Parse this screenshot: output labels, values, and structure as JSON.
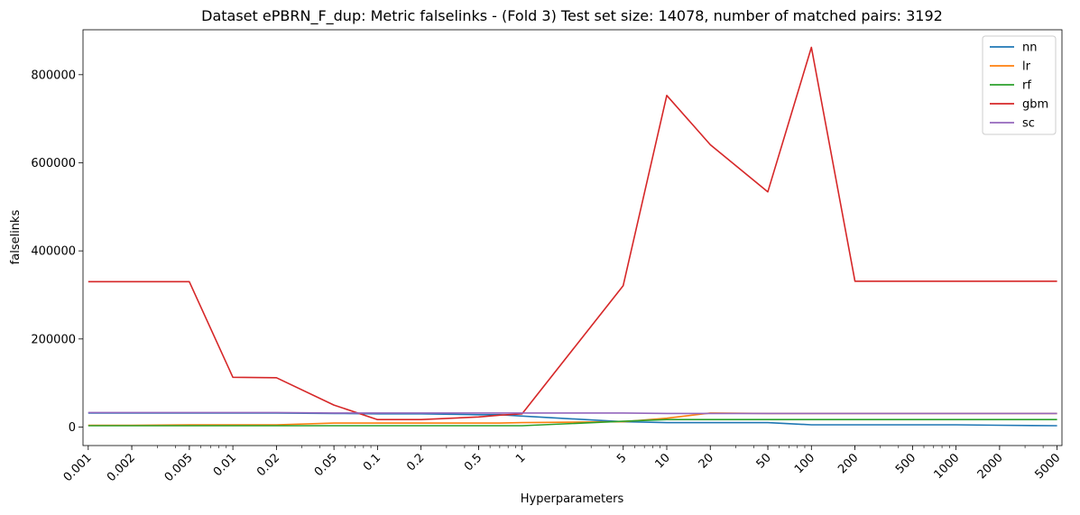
{
  "chart_data": {
    "type": "line",
    "title": "Dataset ePBRN_F_dup: Metric falselinks - (Fold 3) Test set size: 14078, number of matched pairs: 3192",
    "xlabel": "Hyperparameters",
    "ylabel": "falselinks",
    "xscale": "log",
    "xlim": [
      0.00092,
      5400
    ],
    "ylim": [
      -42000,
      902000
    ],
    "grid": false,
    "legend_position": "top-right",
    "x_ticks": [
      {
        "value": 0.001,
        "label": "0.001"
      },
      {
        "value": 0.002,
        "label": "0.002"
      },
      {
        "value": 0.005,
        "label": "0.005"
      },
      {
        "value": 0.01,
        "label": "0.01"
      },
      {
        "value": 0.02,
        "label": "0.02"
      },
      {
        "value": 0.05,
        "label": "0.05"
      },
      {
        "value": 0.1,
        "label": "0.1"
      },
      {
        "value": 0.2,
        "label": "0.2"
      },
      {
        "value": 0.5,
        "label": "0.5"
      },
      {
        "value": 1,
        "label": "1"
      },
      {
        "value": 5,
        "label": "5"
      },
      {
        "value": 10,
        "label": "10"
      },
      {
        "value": 20,
        "label": "20"
      },
      {
        "value": 50,
        "label": "50"
      },
      {
        "value": 100,
        "label": "100"
      },
      {
        "value": 200,
        "label": "200"
      },
      {
        "value": 500,
        "label": "500"
      },
      {
        "value": 1000,
        "label": "1000"
      },
      {
        "value": 2000,
        "label": "2000"
      },
      {
        "value": 5000,
        "label": "5000"
      }
    ],
    "y_ticks": [
      {
        "value": 0,
        "label": "0"
      },
      {
        "value": 200000,
        "label": "200000"
      },
      {
        "value": 400000,
        "label": "400000"
      },
      {
        "value": 600000,
        "label": "600000"
      },
      {
        "value": 800000,
        "label": "800000"
      }
    ],
    "x": [
      0.001,
      0.002,
      0.005,
      0.01,
      0.02,
      0.05,
      0.1,
      0.2,
      0.5,
      0.7,
      1,
      5,
      10,
      20,
      50,
      100,
      200,
      500,
      1000,
      2000,
      5000
    ],
    "series": [
      {
        "name": "nn",
        "color": "#1f77b4",
        "values": [
          32000,
          32000,
          32000,
          32000,
          32000,
          31000,
          30000,
          30000,
          28000,
          28000,
          25000,
          12000,
          10000,
          10000,
          10000,
          5000,
          5000,
          5000,
          5000,
          4000,
          3000
        ]
      },
      {
        "name": "lr",
        "color": "#ff7f0e",
        "values": [
          4000,
          4000,
          5000,
          5000,
          5000,
          9000,
          9000,
          9000,
          9000,
          9000,
          10000,
          12000,
          20000,
          32000,
          31000,
          31000,
          31000,
          31000,
          31000,
          31000,
          31000
        ]
      },
      {
        "name": "rf",
        "color": "#2ca02c",
        "values": [
          3000,
          3000,
          3000,
          3000,
          3000,
          3000,
          3000,
          3000,
          3000,
          3000,
          3000,
          13000,
          17000,
          17000,
          17000,
          17000,
          17000,
          17000,
          17000,
          17000,
          17000
        ]
      },
      {
        "name": "gbm",
        "color": "#d62728",
        "values": [
          330000,
          330000,
          330000,
          113000,
          112000,
          50000,
          17000,
          17000,
          23000,
          27000,
          30000,
          321000,
          753000,
          641000,
          534000,
          862000,
          331000,
          331000,
          331000,
          331000,
          331000
        ]
      },
      {
        "name": "sc",
        "color": "#9467bd",
        "values": [
          33000,
          33000,
          33000,
          33000,
          33000,
          32000,
          32000,
          32000,
          32000,
          32000,
          32000,
          32000,
          31000,
          31000,
          31000,
          31000,
          31000,
          31000,
          31000,
          31000,
          31000
        ]
      }
    ]
  }
}
